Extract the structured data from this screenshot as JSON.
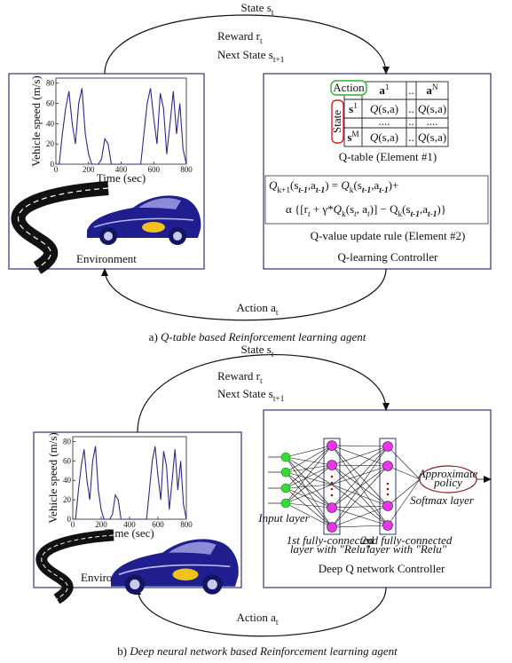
{
  "panels": [
    {
      "state": [
        {
          "t": "State s"
        },
        {
          "t": "t",
          "sub": true
        }
      ],
      "reward": [
        {
          "t": "Reward r"
        },
        {
          "t": "t",
          "sub": true
        }
      ],
      "next_state": [
        {
          "t": "Next State s"
        },
        {
          "t": "t+1",
          "sub": true
        }
      ],
      "environment": "Environment",
      "action": [
        {
          "t": "Action a"
        },
        {
          "t": "t",
          "sub": true
        }
      ],
      "caption": [
        {
          "t": "a) "
        },
        {
          "t": "Q-table based Reinforcement learning agent",
          "italic": true
        }
      ],
      "controller": "Q-learning Controller",
      "qtable": {
        "action_label": "Action",
        "state_label": "State",
        "rows": [
          [
            null,
            [
              {
                "t": "a",
                "bold": true
              },
              {
                "t": "1",
                "sup": true
              }
            ],
            [
              {
                "t": ".."
              }
            ],
            [
              {
                "t": "a",
                "bold": true
              },
              {
                "t": "N",
                "sup": true
              }
            ]
          ],
          [
            [
              {
                "t": "s",
                "bold": true
              },
              {
                "t": "1",
                "sup": true
              }
            ],
            [
              {
                "t": "Q",
                "italic": true
              },
              {
                "t": "(s,a)"
              }
            ],
            [
              {
                "t": ".."
              }
            ],
            [
              {
                "t": "Q",
                "italic": true
              },
              {
                "t": "(s,a)"
              }
            ]
          ],
          [
            null,
            [
              {
                "t": "...."
              }
            ],
            [
              {
                "t": ".."
              }
            ],
            [
              {
                "t": "...."
              }
            ]
          ],
          [
            [
              {
                "t": "s",
                "bold": true
              },
              {
                "t": "M",
                "sup": true
              }
            ],
            [
              {
                "t": "Q",
                "italic": true
              },
              {
                "t": "(s,a)"
              }
            ],
            [
              {
                "t": ".."
              }
            ],
            [
              {
                "t": "Q",
                "italic": true
              },
              {
                "t": "(s,a)"
              }
            ]
          ]
        ]
      },
      "qtable_caption": "Q-table (Element #1)",
      "formula": [
        [
          {
            "t": "Q",
            "italic": true
          },
          {
            "t": "k+1",
            "sub": true
          },
          {
            "t": "(s"
          },
          {
            "t": "t-1",
            "sub": true,
            "italic": true,
            "bold": true
          },
          {
            "t": ",a"
          },
          {
            "t": "t-1",
            "sub": true,
            "italic": true,
            "bold": true
          },
          {
            "t": ") = "
          },
          {
            "t": "Q",
            "italic": true
          },
          {
            "t": "k",
            "sub": true
          },
          {
            "t": "(s"
          },
          {
            "t": "t-1",
            "sub": true,
            "italic": true,
            "bold": true
          },
          {
            "t": ",a"
          },
          {
            "t": "t-1",
            "sub": true,
            "italic": true,
            "bold": true
          },
          {
            "t": ")+"
          }
        ],
        [
          {
            "t": "α {[r"
          },
          {
            "t": "t",
            "sub": true,
            "italic": true
          },
          {
            "t": " + γ*"
          },
          {
            "t": "Q",
            "italic": true
          },
          {
            "t": "k",
            "sub": true
          },
          {
            "t": "(s"
          },
          {
            "t": "t",
            "sub": true,
            "italic": true
          },
          {
            "t": ", a"
          },
          {
            "t": "t",
            "sub": true,
            "italic": true
          },
          {
            "t": ")] − Q"
          },
          {
            "t": "k",
            "sub": true
          },
          {
            "t": "(s"
          },
          {
            "t": "t-1",
            "sub": true,
            "italic": true,
            "bold": true
          },
          {
            "t": ",a"
          },
          {
            "t": "t-1",
            "sub": true,
            "italic": true,
            "bold": true
          },
          {
            "t": ")}"
          }
        ]
      ],
      "formula_caption": "Q-value update rule (Element #2)"
    },
    {
      "state": [
        {
          "t": "State s"
        },
        {
          "t": "t",
          "sub": true
        }
      ],
      "reward": [
        {
          "t": "Reward r"
        },
        {
          "t": "t",
          "sub": true
        }
      ],
      "next_state": [
        {
          "t": "Next State s"
        },
        {
          "t": "t+1",
          "sub": true
        }
      ],
      "environment": "Environment",
      "action": [
        {
          "t": "Action a"
        },
        {
          "t": "t",
          "sub": true
        }
      ],
      "caption": [
        {
          "t": "b) "
        },
        {
          "t": "Deep neural network based Reinforcement learning agent",
          "italic": true
        }
      ],
      "controller": "Deep Q network Controller",
      "network": {
        "input_layer": "Input layer",
        "layer1": [
          "1st fully-connected",
          "layer with \"Relu\""
        ],
        "layer2": [
          "2nd fully-connected",
          "layer with \"Relu\""
        ],
        "policy": [
          "Approximate",
          "policy"
        ],
        "softmax": "Softmax layer"
      }
    }
  ],
  "speed_plot": {
    "ylabel": "Vehicle speed (m/s)",
    "xlabel": "Time (sec)",
    "xlim": [
      0,
      800
    ],
    "ylim": [
      0,
      85
    ],
    "xticks": [
      0,
      200,
      400,
      600,
      800
    ],
    "yticks": [
      0,
      20,
      40,
      60,
      80
    ],
    "color": "#2a2a8a",
    "x": [
      0,
      20,
      40,
      60,
      80,
      100,
      120,
      140,
      160,
      180,
      200,
      220,
      240,
      260,
      280,
      300,
      320,
      340,
      360,
      380,
      400,
      420,
      440,
      460,
      480,
      500,
      520,
      540,
      560,
      580,
      600,
      620,
      640,
      660,
      680,
      700,
      720,
      740,
      760,
      780,
      800
    ],
    "values": [
      0,
      0,
      30,
      55,
      72,
      40,
      20,
      60,
      75,
      30,
      10,
      0,
      0,
      0,
      5,
      25,
      20,
      0,
      0,
      0,
      0,
      0,
      0,
      0,
      0,
      0,
      0,
      30,
      60,
      75,
      45,
      20,
      70,
      55,
      10,
      40,
      72,
      30,
      60,
      15,
      0
    ]
  }
}
